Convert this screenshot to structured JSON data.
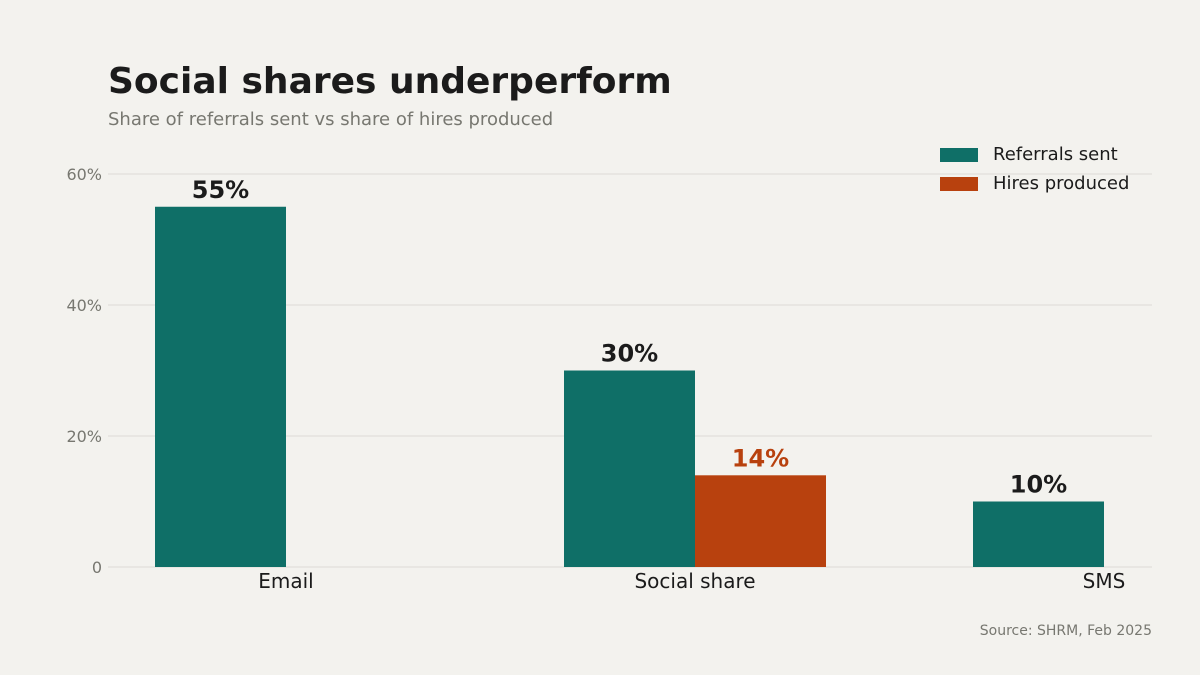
{
  "header": {
    "title": "Social shares underperform",
    "subtitle": "Share of referrals sent vs share of hires produced"
  },
  "source": "Source: SHRM, Feb 2025",
  "colors": {
    "referrals": "#0f6f67",
    "hires": "#b8410e",
    "grid": "#dcdbd6",
    "tick": "#777770",
    "label_dark": "#1b1b1b"
  },
  "chart_data": {
    "type": "bar",
    "title": "Social shares underperform",
    "subtitle": "Share of referrals sent vs share of hires produced",
    "categories": [
      "Email",
      "Social share",
      "SMS"
    ],
    "series": [
      {
        "name": "Referrals sent",
        "values": [
          55,
          30,
          10
        ]
      },
      {
        "name": "Hires produced",
        "values": [
          null,
          14,
          null
        ]
      }
    ],
    "data_labels": [
      {
        "series": 0,
        "category": 0,
        "text": "55%"
      },
      {
        "series": 0,
        "category": 1,
        "text": "30%"
      },
      {
        "series": 1,
        "category": 1,
        "text": "14%"
      },
      {
        "series": 0,
        "category": 2,
        "text": "10%"
      }
    ],
    "yticks": [
      {
        "value": 0,
        "label": "0"
      },
      {
        "value": 20,
        "label": "20%"
      },
      {
        "value": 40,
        "label": "40%"
      },
      {
        "value": 60,
        "label": "60%"
      }
    ],
    "ylim": [
      0,
      60
    ],
    "grid": true,
    "legend_position": "top-right"
  }
}
